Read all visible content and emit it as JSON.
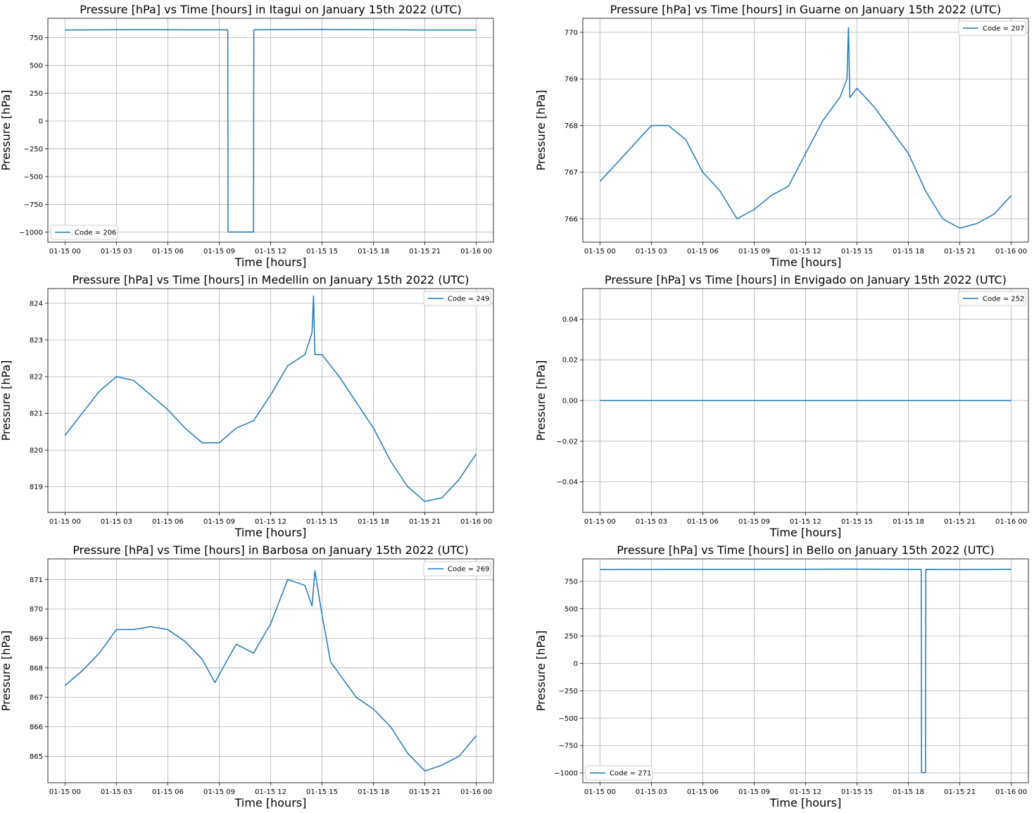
{
  "chart_data": [
    {
      "type": "line",
      "title": "Pressure [hPa] vs Time [hours] in Itagui on January 15th 2022 (UTC)",
      "xlabel": "Time [hours]",
      "ylabel": "Pressure [hPa]",
      "xlim": [
        "2022-01-14 23:00",
        "2022-01-16 01:00"
      ],
      "ylim": [
        -1090,
        925
      ],
      "x_ticks": [
        "01-15 00",
        "01-15 03",
        "01-15 06",
        "01-15 09",
        "01-15 12",
        "01-15 15",
        "01-15 18",
        "01-15 21",
        "01-16 00"
      ],
      "y_ticks": [
        -1000,
        -750,
        -500,
        -250,
        0,
        250,
        500,
        750
      ],
      "y_tick_labels": [
        "−1000",
        "−750",
        "−500",
        "−250",
        "0",
        "250",
        "500",
        "750"
      ],
      "grid": true,
      "legend": "lower left",
      "color": "#1f77b4",
      "series": [
        {
          "name": "Code = 206",
          "x": [
            "2022-01-15 00:00",
            "2022-01-15 03:00",
            "2022-01-15 06:00",
            "2022-01-15 09:30",
            "2022-01-15 09:31",
            "2022-01-15 11:00",
            "2022-01-15 11:01",
            "2022-01-15 14:30",
            "2022-01-15 18:00",
            "2022-01-15 21:00",
            "2022-01-16 00:00"
          ],
          "y": [
            820,
            822,
            822,
            821,
            -999,
            -999,
            821,
            824,
            822,
            820,
            820
          ]
        }
      ]
    },
    {
      "type": "line",
      "title": "Pressure [hPa] vs Time [hours] in Guarne on January 15th 2022 (UTC)",
      "xlabel": "Time [hours]",
      "ylabel": "Pressure [hPa]",
      "xlim": [
        "2022-01-14 23:00",
        "2022-01-16 01:00"
      ],
      "ylim": [
        765.5,
        770.3
      ],
      "x_ticks": [
        "01-15 00",
        "01-15 03",
        "01-15 06",
        "01-15 09",
        "01-15 12",
        "01-15 15",
        "01-15 18",
        "01-15 21",
        "01-16 00"
      ],
      "y_ticks": [
        766,
        767,
        768,
        769,
        770
      ],
      "y_tick_labels": [
        "766",
        "767",
        "768",
        "769",
        "770"
      ],
      "grid": true,
      "legend": "upper right",
      "color": "#1f77b4",
      "series": [
        {
          "name": "Code = 207",
          "x": [
            "2022-01-15 00:00",
            "2022-01-15 01:00",
            "2022-01-15 02:00",
            "2022-01-15 03:00",
            "2022-01-15 04:00",
            "2022-01-15 05:00",
            "2022-01-15 06:00",
            "2022-01-15 07:00",
            "2022-01-15 08:00",
            "2022-01-15 09:00",
            "2022-01-15 10:00",
            "2022-01-15 11:00",
            "2022-01-15 12:00",
            "2022-01-15 13:00",
            "2022-01-15 14:00",
            "2022-01-15 14:25",
            "2022-01-15 14:30",
            "2022-01-15 14:35",
            "2022-01-15 15:00",
            "2022-01-15 16:00",
            "2022-01-15 17:00",
            "2022-01-15 18:00",
            "2022-01-15 19:00",
            "2022-01-15 20:00",
            "2022-01-15 21:00",
            "2022-01-15 22:00",
            "2022-01-15 23:00",
            "2022-01-16 00:00"
          ],
          "y": [
            766.8,
            767.2,
            767.6,
            768.0,
            768.0,
            767.7,
            767.0,
            766.6,
            766.0,
            766.2,
            766.5,
            766.7,
            767.4,
            768.1,
            768.6,
            769.0,
            770.1,
            768.6,
            768.8,
            768.4,
            767.9,
            767.4,
            766.6,
            766.0,
            765.8,
            765.9,
            766.1,
            766.5
          ]
        }
      ]
    },
    {
      "type": "line",
      "title": "Pressure [hPa] vs Time [hours] in Medellin on January 15th 2022 (UTC)",
      "xlabel": "Time [hours]",
      "ylabel": "Pressure [hPa]",
      "xlim": [
        "2022-01-14 23:00",
        "2022-01-16 01:00"
      ],
      "ylim": [
        818.3,
        824.4
      ],
      "x_ticks": [
        "01-15 00",
        "01-15 03",
        "01-15 06",
        "01-15 09",
        "01-15 12",
        "01-15 15",
        "01-15 18",
        "01-15 21",
        "01-16 00"
      ],
      "y_ticks": [
        819,
        820,
        821,
        822,
        823,
        824
      ],
      "y_tick_labels": [
        "819",
        "820",
        "821",
        "822",
        "823",
        "824"
      ],
      "grid": true,
      "legend": "upper right",
      "color": "#1f77b4",
      "series": [
        {
          "name": "Code = 249",
          "x": [
            "2022-01-15 00:00",
            "2022-01-15 01:00",
            "2022-01-15 02:00",
            "2022-01-15 03:00",
            "2022-01-15 04:00",
            "2022-01-15 05:00",
            "2022-01-15 06:00",
            "2022-01-15 07:00",
            "2022-01-15 08:00",
            "2022-01-15 09:00",
            "2022-01-15 10:00",
            "2022-01-15 11:00",
            "2022-01-15 12:00",
            "2022-01-15 13:00",
            "2022-01-15 14:00",
            "2022-01-15 14:25",
            "2022-01-15 14:30",
            "2022-01-15 14:35",
            "2022-01-15 15:00",
            "2022-01-15 16:00",
            "2022-01-15 17:00",
            "2022-01-15 18:00",
            "2022-01-15 19:00",
            "2022-01-15 20:00",
            "2022-01-15 21:00",
            "2022-01-15 22:00",
            "2022-01-15 23:00",
            "2022-01-16 00:00"
          ],
          "y": [
            820.4,
            821.0,
            821.6,
            822.0,
            821.9,
            821.5,
            821.1,
            820.6,
            820.2,
            820.2,
            820.6,
            820.8,
            821.5,
            822.3,
            822.6,
            823.2,
            824.2,
            822.6,
            822.6,
            822.0,
            821.3,
            820.6,
            819.7,
            819.0,
            818.6,
            818.7,
            819.2,
            819.9
          ]
        }
      ]
    },
    {
      "type": "line",
      "title": "Pressure [hPa] vs Time [hours] in Envigado on January 15th 2022 (UTC)",
      "xlabel": "Time [hours]",
      "ylabel": "Pressure [hPa]",
      "xlim": [
        "2022-01-14 23:00",
        "2022-01-16 01:00"
      ],
      "ylim": [
        -0.055,
        0.055
      ],
      "x_ticks": [
        "01-15 00",
        "01-15 03",
        "01-15 06",
        "01-15 09",
        "01-15 12",
        "01-15 15",
        "01-15 18",
        "01-15 21",
        "01-16 00"
      ],
      "y_ticks": [
        -0.04,
        -0.02,
        0.0,
        0.02,
        0.04
      ],
      "y_tick_labels": [
        "−0.04",
        "−0.02",
        "0.00",
        "0.02",
        "0.04"
      ],
      "grid": true,
      "legend": "upper right",
      "color": "#1f77b4",
      "series": [
        {
          "name": "Code = 252",
          "x": [
            "2022-01-15 00:00",
            "2022-01-16 00:00"
          ],
          "y": [
            0.0,
            0.0
          ]
        }
      ]
    },
    {
      "type": "line",
      "title": "Pressure [hPa] vs Time [hours] in Barbosa on January 15th 2022 (UTC)",
      "xlabel": "Time [hours]",
      "ylabel": "Pressure [hPa]",
      "xlim": [
        "2022-01-14 23:00",
        "2022-01-16 01:00"
      ],
      "ylim": [
        864.1,
        871.7
      ],
      "x_ticks": [
        "01-15 00",
        "01-15 03",
        "01-15 06",
        "01-15 09",
        "01-15 12",
        "01-15 15",
        "01-15 18",
        "01-15 21",
        "01-16 00"
      ],
      "y_ticks": [
        865,
        866,
        867,
        868,
        869,
        870,
        871
      ],
      "y_tick_labels": [
        "865",
        "866",
        "867",
        "868",
        "869",
        "870",
        "871"
      ],
      "grid": true,
      "legend": "upper right",
      "color": "#1f77b4",
      "series": [
        {
          "name": "Code = 269",
          "x": [
            "2022-01-15 00:00",
            "2022-01-15 01:00",
            "2022-01-15 02:00",
            "2022-01-15 03:00",
            "2022-01-15 04:00",
            "2022-01-15 05:00",
            "2022-01-15 06:00",
            "2022-01-15 07:00",
            "2022-01-15 08:00",
            "2022-01-15 08:45",
            "2022-01-15 09:30",
            "2022-01-15 10:00",
            "2022-01-15 11:00",
            "2022-01-15 12:00",
            "2022-01-15 13:00",
            "2022-01-15 14:00",
            "2022-01-15 14:25",
            "2022-01-15 14:35",
            "2022-01-15 15:00",
            "2022-01-15 15:30",
            "2022-01-15 16:00",
            "2022-01-15 17:00",
            "2022-01-15 18:00",
            "2022-01-15 19:00",
            "2022-01-15 20:00",
            "2022-01-15 21:00",
            "2022-01-15 22:00",
            "2022-01-15 23:00",
            "2022-01-16 00:00"
          ],
          "y": [
            867.4,
            867.9,
            868.5,
            869.3,
            869.3,
            869.4,
            869.3,
            868.9,
            868.3,
            867.5,
            868.3,
            868.8,
            868.5,
            869.5,
            871.0,
            870.8,
            870.1,
            871.3,
            869.8,
            868.2,
            867.8,
            867.0,
            866.6,
            866.0,
            865.1,
            864.5,
            864.7,
            865.0,
            865.7
          ]
        }
      ]
    },
    {
      "type": "line",
      "title": "Pressure [hPa] vs Time [hours] in Bello on January 15th 2022 (UTC)",
      "xlabel": "Time [hours]",
      "ylabel": "Pressure [hPa]",
      "xlim": [
        "2022-01-14 23:00",
        "2022-01-16 01:00"
      ],
      "ylim": [
        -1090,
        955
      ],
      "x_ticks": [
        "01-15 00",
        "01-15 03",
        "01-15 06",
        "01-15 09",
        "01-15 12",
        "01-15 15",
        "01-15 18",
        "01-15 21",
        "01-16 00"
      ],
      "y_ticks": [
        -1000,
        -750,
        -500,
        -250,
        0,
        250,
        500,
        750
      ],
      "y_tick_labels": [
        "−1000",
        "−750",
        "−500",
        "−250",
        "0",
        "250",
        "500",
        "750"
      ],
      "grid": true,
      "legend": "lower left",
      "color": "#1f77b4",
      "series": [
        {
          "name": "Code = 271",
          "x": [
            "2022-01-15 00:00",
            "2022-01-15 06:00",
            "2022-01-15 12:00",
            "2022-01-15 14:30",
            "2022-01-15 18:45",
            "2022-01-15 18:46",
            "2022-01-15 19:00",
            "2022-01-15 19:01",
            "2022-01-15 21:00",
            "2022-01-16 00:00"
          ],
          "y": [
            858,
            859,
            860,
            862,
            859,
            -999,
            -999,
            859,
            858,
            860
          ]
        }
      ]
    }
  ]
}
